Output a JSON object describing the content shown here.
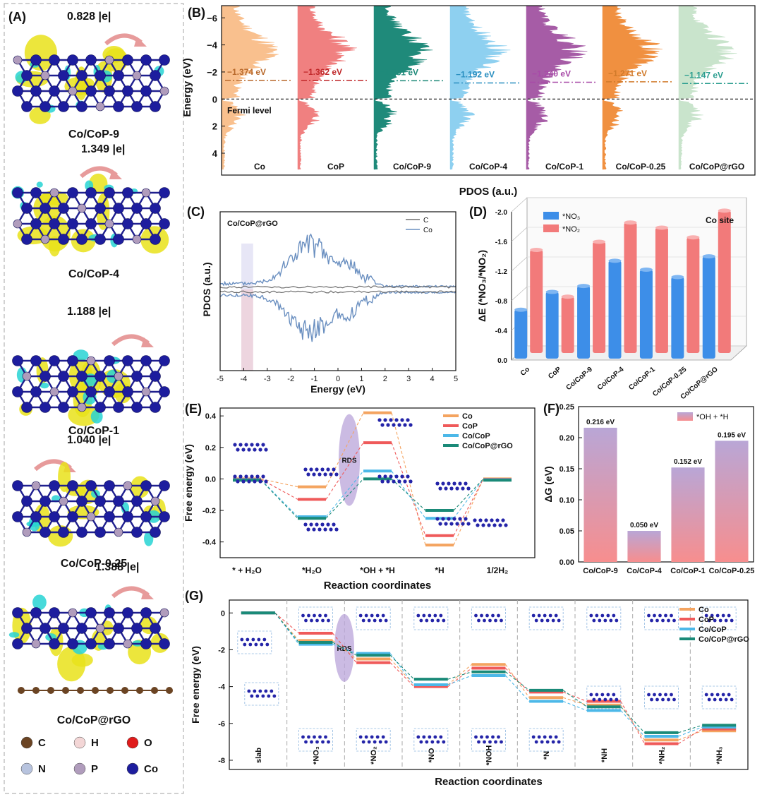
{
  "panels": {
    "A": {
      "label": "(A)",
      "items": [
        {
          "charge": "0.828 |e|",
          "name": "Co/CoP-9"
        },
        {
          "charge": "1.349 |e|",
          "name": "Co/CoP-4"
        },
        {
          "charge": "1.188 |e|",
          "name": "Co/CoP-1"
        },
        {
          "charge": "1.040 |e|",
          "name": "Co/CoP-0.25"
        },
        {
          "charge": "1.388 |e|",
          "name": "Co/CoP@rGO"
        }
      ],
      "legend": [
        {
          "symbol": "C",
          "color": "#6b4423"
        },
        {
          "symbol": "H",
          "color": "#f3d6d6"
        },
        {
          "symbol": "O",
          "color": "#e01b1b"
        },
        {
          "symbol": "N",
          "color": "#b7c3de"
        },
        {
          "symbol": "P",
          "color": "#b09cbc"
        },
        {
          "symbol": "Co",
          "color": "#1d1d9e"
        }
      ]
    },
    "B": {
      "label": "(B)"
    },
    "C": {
      "label": "(C)"
    },
    "D": {
      "label": "(D)"
    },
    "E": {
      "label": "(E)"
    },
    "F": {
      "label": "(F)"
    },
    "G": {
      "label": "(G)"
    }
  },
  "chart_data": [
    {
      "id": "B",
      "type": "area",
      "ylabel": "Energy (eV)",
      "xlabel": "PDOS (a.u.)",
      "ylim": [
        5,
        -7
      ],
      "yticks": [
        "−6",
        "−4",
        "−2",
        "0",
        "2",
        "4"
      ],
      "fermi_label": "Fermi level",
      "series": [
        {
          "name": "Co",
          "center": "−1.374 eV",
          "center_value": -1.374,
          "color": "#f9c08e",
          "text_color": "#b8692b"
        },
        {
          "name": "CoP",
          "center": "−1.362 eV",
          "center_value": -1.362,
          "color": "#f08080",
          "text_color": "#c0282a"
        },
        {
          "name": "Co/CoP-9",
          "center": "−1.351 eV",
          "center_value": -1.351,
          "color": "#1f8a7a",
          "text_color": "#1f8a7a"
        },
        {
          "name": "Co/CoP-4",
          "center": "−1.192 eV",
          "center_value": -1.192,
          "color": "#8ed0f0",
          "text_color": "#2a8fc0"
        },
        {
          "name": "Co/CoP-1",
          "center": "−1.240 eV",
          "center_value": -1.24,
          "color": "#a65ca6",
          "text_color": "#a84aa8"
        },
        {
          "name": "Co/CoP-0.25",
          "center": "−1.271 eV",
          "center_value": -1.271,
          "color": "#f09040",
          "text_color": "#d07a2a"
        },
        {
          "name": "Co/CoP@rGO",
          "center": "−1.147 eV",
          "center_value": -1.147,
          "color": "#c9e4cc",
          "text_color": "#2a9d8f"
        }
      ]
    },
    {
      "id": "C",
      "type": "line",
      "title": "Co/CoP@rGO",
      "xlabel": "Energy (eV)",
      "ylabel": "PDOS (a.u.)",
      "xlim": [
        -5,
        5
      ],
      "xticks": [
        "-5",
        "-4",
        "-3",
        "-2",
        "-1",
        "0",
        "1",
        "2",
        "3",
        "4",
        "5"
      ],
      "series": [
        {
          "name": "C",
          "color": "#6e6e6e"
        },
        {
          "name": "Co",
          "color": "#6a8fc0"
        }
      ]
    },
    {
      "id": "D",
      "type": "bar",
      "title": "Co site",
      "ylabel": "ΔE (*NO₃/*NO₂)",
      "ylim": [
        0,
        -2.0
      ],
      "yticks": [
        "0.0",
        "-0.4",
        "-0.8",
        "-1.2",
        "-1.6",
        "-2.0"
      ],
      "categories": [
        "Co",
        "CoP",
        "Co/CoP-9",
        "Co/CoP-4",
        "Co/CoP-1",
        "Co/CoP-0.25",
        "Co/CoP@rGO"
      ],
      "series": [
        {
          "name": "*NO₃",
          "values": [
            -0.66,
            -0.9,
            -0.98,
            -1.32,
            -1.2,
            -1.1,
            -1.38
          ],
          "color": "#3d8ee8"
        },
        {
          "name": "*NO₂",
          "values": [
            -1.39,
            -0.76,
            -1.5,
            -1.76,
            -1.69,
            -1.56,
            -1.92
          ],
          "color": "#f27a7a"
        }
      ]
    },
    {
      "id": "E",
      "type": "line",
      "xlabel": "Reaction coordinates",
      "ylabel": "Free energy (eV)",
      "ylim": [
        -0.5,
        0.45
      ],
      "yticks": [
        "0.4",
        "0.2",
        "0.0",
        "-0.2",
        "-0.4"
      ],
      "categories": [
        "* + H₂O",
        "*H₂O",
        "*OH + *H",
        "*H",
        "1/2H₂"
      ],
      "rds_label": "RDS",
      "series": [
        {
          "name": "Co",
          "color": "#f4a460",
          "values": [
            0,
            -0.05,
            0.42,
            -0.42,
            0
          ]
        },
        {
          "name": "CoP",
          "color": "#ef5a5a",
          "values": [
            0,
            -0.13,
            0.23,
            -0.36,
            0
          ]
        },
        {
          "name": "Co/CoP",
          "color": "#4cb8e8",
          "values": [
            0,
            -0.24,
            0.05,
            -0.25,
            0
          ]
        },
        {
          "name": "Co/CoP@rGO",
          "color": "#1a8a78",
          "values": [
            0,
            -0.25,
            0.0,
            -0.2,
            0
          ]
        }
      ]
    },
    {
      "id": "F",
      "type": "bar",
      "ylabel": "ΔG (eV)",
      "ylim": [
        0,
        0.25
      ],
      "yticks": [
        "0.00",
        "0.05",
        "0.10",
        "0.15",
        "0.20",
        "0.25"
      ],
      "legend": "*OH + *H",
      "categories": [
        "Co/CoP-9",
        "Co/CoP-4",
        "Co/CoP-1",
        "Co/CoP-0.25"
      ],
      "values": [
        0.216,
        0.05,
        0.152,
        0.195
      ],
      "value_labels": [
        "0.216 eV",
        "0.050 eV",
        "0.152 eV",
        "0.195 eV"
      ]
    },
    {
      "id": "G",
      "type": "line",
      "xlabel": "Reaction coordinates",
      "ylabel": "Free energy (eV)",
      "ylim": [
        -8.5,
        0.7
      ],
      "yticks": [
        "0",
        "-2",
        "-4",
        "-6",
        "-8"
      ],
      "categories": [
        "slab",
        "*NO₃",
        "*NO₂",
        "*NO",
        "*NOH",
        "*N",
        "*NH",
        "*NH₂",
        "*NH₃"
      ],
      "rds_label": "RDS",
      "series": [
        {
          "name": "Co",
          "color": "#f4a460",
          "values": [
            0,
            -1.5,
            -2.5,
            -3.9,
            -2.8,
            -4.6,
            -5.0,
            -6.9,
            -6.4
          ]
        },
        {
          "name": "CoP",
          "color": "#ef5a5a",
          "values": [
            0,
            -1.1,
            -2.7,
            -4.0,
            -3.0,
            -4.3,
            -4.8,
            -7.1,
            -6.3
          ]
        },
        {
          "name": "Co/CoP",
          "color": "#4cb8e8",
          "values": [
            0,
            -1.7,
            -2.2,
            -3.9,
            -3.4,
            -4.8,
            -5.3,
            -6.7,
            -6.2
          ]
        },
        {
          "name": "Co/CoP@rGO",
          "color": "#1a8a78",
          "values": [
            0,
            -1.6,
            -2.3,
            -3.6,
            -3.2,
            -4.2,
            -5.1,
            -6.5,
            -6.1
          ]
        }
      ]
    }
  ]
}
